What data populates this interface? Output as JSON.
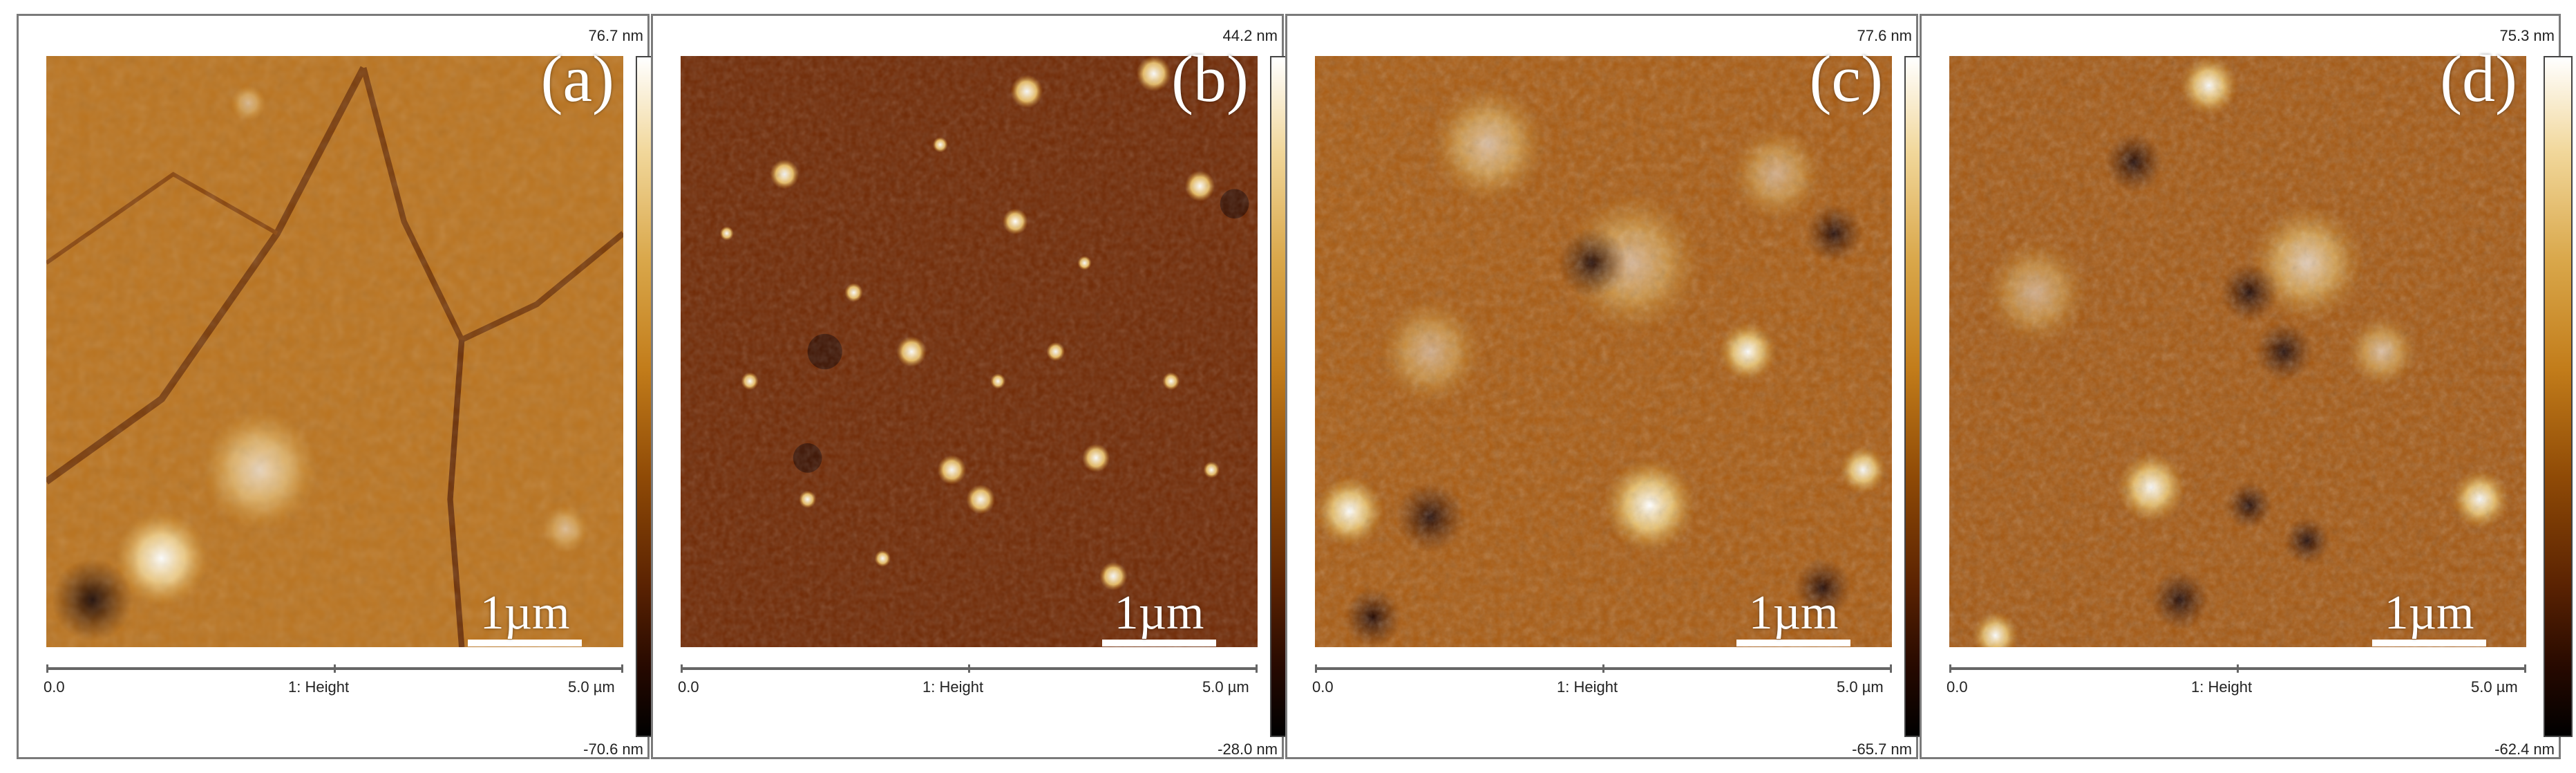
{
  "panels": [
    {
      "letter": "(a)",
      "scale_label": "1µm",
      "x_start": "0.0",
      "channel": "1: Height",
      "x_end": "5.0 µm",
      "cb_max": "76.7 nm",
      "cb_min": "-70.6 nm",
      "palette": "afm-gold"
    },
    {
      "letter": "(b)",
      "scale_label": "1µm",
      "x_start": "0.0",
      "channel": "1: Height",
      "x_end": "5.0 µm",
      "cb_max": "44.2 nm",
      "cb_min": "-28.0 nm",
      "palette": "afm-gold"
    },
    {
      "letter": "(c)",
      "scale_label": "1µm",
      "x_start": "0.0",
      "channel": "1: Height",
      "x_end": "5.0 µm",
      "cb_max": "77.6 nm",
      "cb_min": "-65.7 nm",
      "palette": "afm-gold"
    },
    {
      "letter": "(d)",
      "scale_label": "1µm",
      "x_start": "0.0",
      "channel": "1: Height",
      "x_end": "5.0 µm",
      "cb_max": "75.3 nm",
      "cb_min": "-62.4 nm",
      "palette": "afm-gold"
    }
  ]
}
